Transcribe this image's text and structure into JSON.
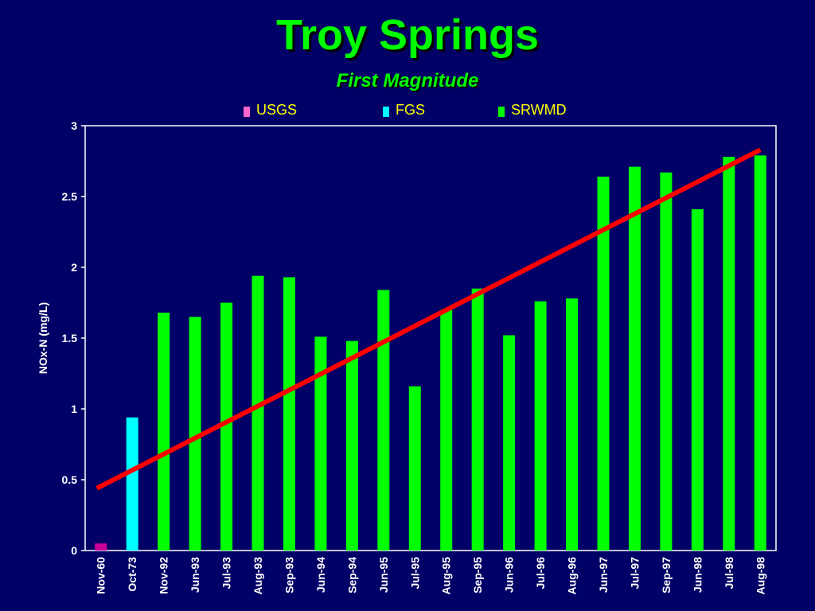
{
  "page": {
    "title": "Troy Springs",
    "subtitle": "First Magnitude",
    "background": "#000066",
    "title_color": "#00ff00"
  },
  "chart_data": {
    "type": "bar",
    "ylabel": "NOx-N (mg/L)",
    "ylim": [
      0,
      3
    ],
    "yticks": [
      0,
      0.5,
      1,
      1.5,
      2,
      2.5,
      3
    ],
    "ytick_labels": [
      "0",
      "0.5",
      "1",
      "1.5",
      "2",
      "2.5",
      "3"
    ],
    "categories": [
      "Nov-60",
      "Oct-73",
      "Nov-92",
      "Jun-93",
      "Jul-93",
      "Aug-93",
      "Sep-93",
      "Jun-94",
      "Sep-94",
      "Jun-95",
      "Jul-95",
      "Aug-95",
      "Sep-95",
      "Jun-96",
      "Jul-96",
      "Aug-96",
      "Jun-97",
      "Jul-97",
      "Sep-97",
      "Jun-98",
      "Jul-98",
      "Aug-98"
    ],
    "values": [
      0.05,
      0.94,
      1.68,
      1.65,
      1.75,
      1.94,
      1.93,
      1.51,
      1.48,
      1.84,
      1.16,
      1.7,
      1.85,
      1.52,
      1.76,
      1.78,
      2.64,
      2.71,
      2.67,
      2.41,
      2.78,
      2.79
    ],
    "bar_series": [
      "USGS",
      "FGS",
      "SRWMD",
      "SRWMD",
      "SRWMD",
      "SRWMD",
      "SRWMD",
      "SRWMD",
      "SRWMD",
      "SRWMD",
      "SRWMD",
      "SRWMD",
      "SRWMD",
      "SRWMD",
      "SRWMD",
      "SRWMD",
      "SRWMD",
      "SRWMD",
      "SRWMD",
      "SRWMD",
      "SRWMD",
      "SRWMD"
    ],
    "legend_position": "top-center",
    "legend": [
      {
        "name": "USGS",
        "color": "#ff66cc"
      },
      {
        "name": "FGS",
        "color": "#00ffff"
      },
      {
        "name": "SRWMD",
        "color": "#00ff00"
      }
    ],
    "series_colors": {
      "USGS": "#cc0099",
      "FGS": "#00ffff",
      "SRWMD": "#00ff00"
    },
    "trend_line": {
      "start_category": "Nov-60",
      "end_category": "Aug-98",
      "start_value": 0.44,
      "end_value": 2.83,
      "color": "#ff0000"
    },
    "grid": false,
    "axis_color": "#ffffff",
    "label_color": "#ffffff",
    "legend_text_color": "#ffff00"
  }
}
